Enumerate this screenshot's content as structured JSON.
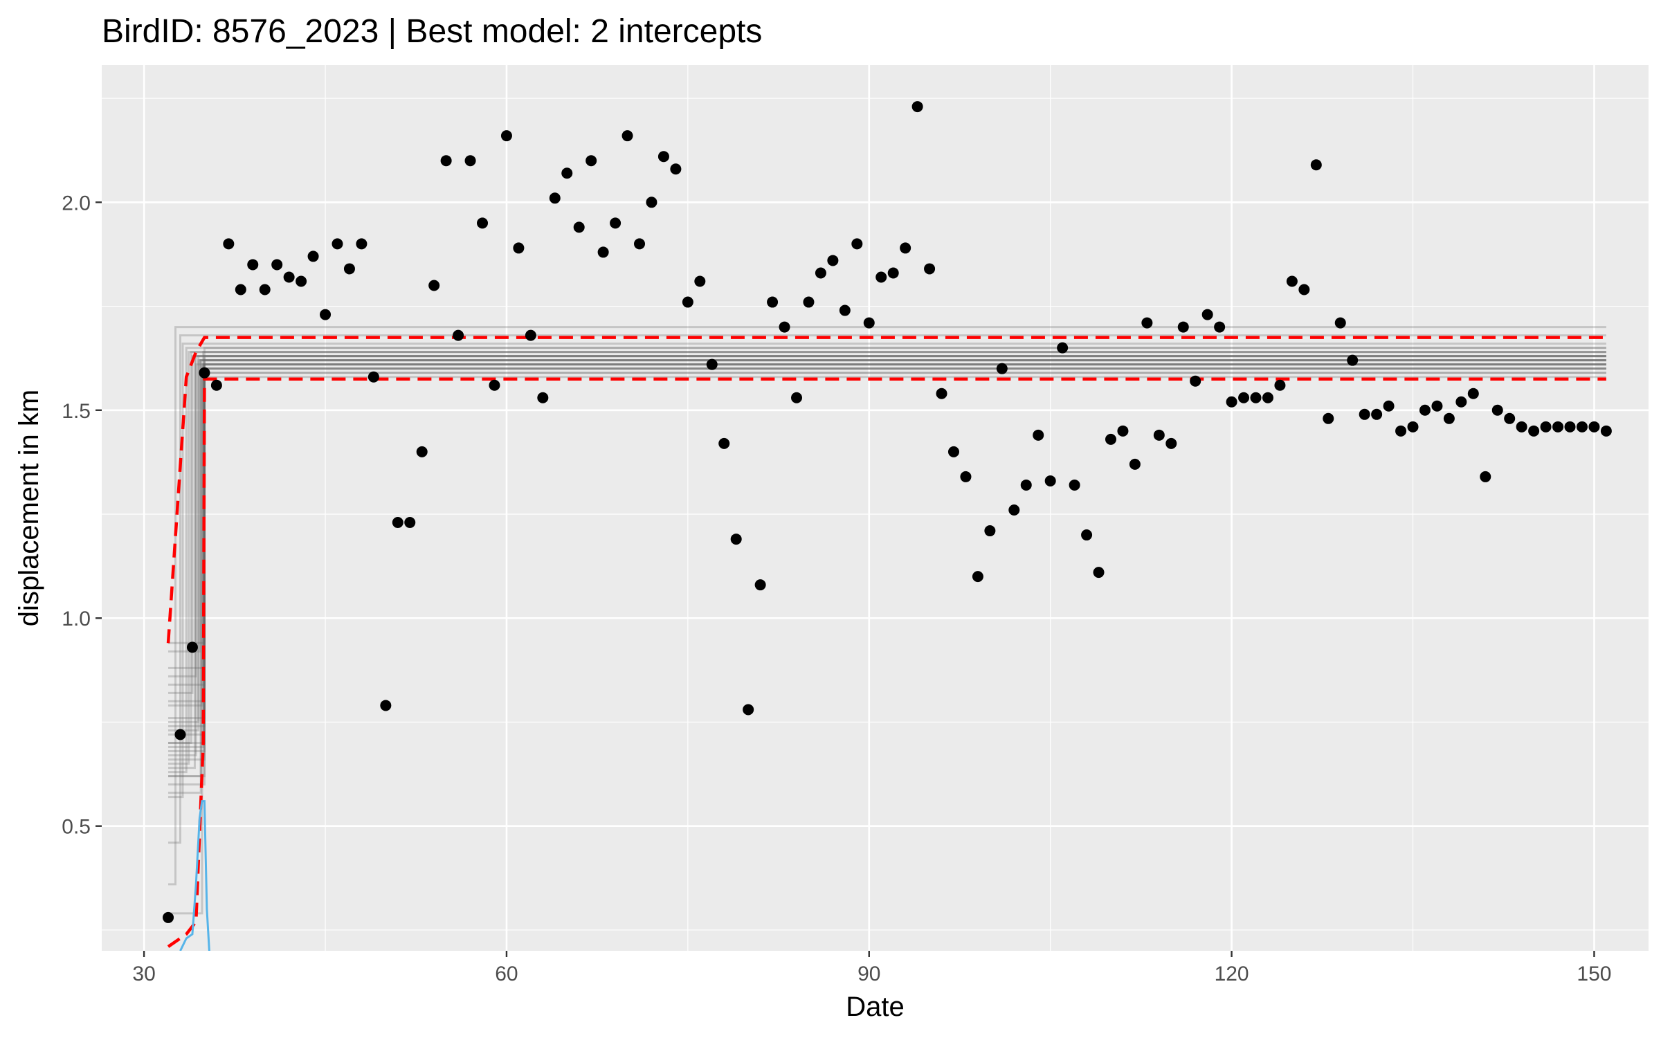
{
  "chart_data": {
    "type": "scatter",
    "title": "BirdID: 8576_2023 | Best model: 2 intercepts",
    "xlabel": "Date",
    "ylabel": "displacement in km",
    "xlim": [
      26.5,
      154.5
    ],
    "ylim": [
      0.2,
      2.33
    ],
    "x_ticks": [
      30,
      60,
      90,
      120,
      150
    ],
    "x_tick_labels": [
      "30",
      "60",
      "90",
      "120",
      "150"
    ],
    "y_ticks": [
      0.5,
      1.0,
      1.5,
      2.0
    ],
    "y_tick_labels": [
      "0.5",
      "1.0",
      "1.5",
      "2.0"
    ],
    "grid": true,
    "legend": "none",
    "colors": {
      "panel": "#ebebeb",
      "grid": "#ffffff",
      "points": "#000000",
      "posterior_lines": "#666666",
      "credible_interval": "#ff0000",
      "changepoint_density": "#56b4e9"
    },
    "points": {
      "x": [
        32,
        33,
        34,
        35,
        36,
        37,
        38,
        39,
        40,
        41,
        42,
        43,
        44,
        45,
        46,
        47,
        48,
        49,
        50,
        51,
        52,
        53,
        54,
        55,
        56,
        57,
        58,
        59,
        60,
        61,
        62,
        63,
        64,
        65,
        66,
        67,
        68,
        69,
        70,
        71,
        72,
        73,
        74,
        75,
        76,
        77,
        78,
        79,
        80,
        81,
        82,
        83,
        84,
        85,
        86,
        87,
        88,
        89,
        90,
        91,
        92,
        93,
        94,
        95,
        96,
        97,
        98,
        99,
        100,
        101,
        102,
        103,
        104,
        105,
        106,
        107,
        108,
        109,
        110,
        111,
        112,
        113,
        114,
        115,
        116,
        117,
        118,
        119,
        120,
        121,
        122,
        123,
        124,
        125,
        126,
        127,
        128,
        129,
        130,
        131,
        132,
        133,
        134,
        135,
        136,
        137,
        138,
        139,
        140,
        141,
        142,
        143,
        144,
        145,
        146,
        147,
        148,
        149,
        150,
        151
      ],
      "y": [
        0.28,
        0.72,
        0.93,
        1.59,
        1.56,
        1.9,
        1.79,
        1.85,
        1.79,
        1.85,
        1.82,
        1.81,
        1.87,
        1.73,
        1.9,
        1.84,
        1.9,
        1.58,
        0.79,
        1.23,
        1.23,
        1.4,
        1.8,
        2.1,
        1.68,
        2.1,
        1.95,
        1.56,
        2.16,
        1.89,
        1.68,
        1.53,
        2.01,
        2.07,
        1.94,
        2.1,
        1.88,
        1.95,
        2.16,
        1.9,
        2.0,
        2.11,
        2.08,
        1.76,
        1.81,
        1.61,
        1.42,
        1.19,
        0.78,
        1.08,
        1.76,
        1.7,
        1.53,
        1.76,
        1.83,
        1.86,
        1.74,
        1.9,
        1.71,
        1.82,
        1.83,
        1.89,
        2.23,
        1.84,
        1.54,
        1.4,
        1.34,
        1.1,
        1.21,
        1.6,
        1.26,
        1.32,
        1.44,
        1.33,
        1.65,
        1.32,
        1.2,
        1.11,
        1.43,
        1.45,
        1.37,
        1.71,
        1.44,
        1.42,
        1.7,
        1.57,
        1.73,
        1.7,
        1.52,
        1.53,
        1.53,
        1.53,
        1.56,
        1.81,
        1.79,
        2.09,
        1.48,
        1.71,
        1.62,
        1.49,
        1.49,
        1.51,
        1.45,
        1.46,
        1.5,
        1.51,
        1.48,
        1.52,
        1.54,
        1.34,
        1.5,
        1.48,
        1.46,
        1.45,
        1.46,
        1.46,
        1.46,
        1.46,
        1.46,
        1.45
      ]
    },
    "posterior_fits": {
      "x_start": 32,
      "x_end": 151,
      "changepoints": [
        32.6,
        33.0,
        33.2,
        33.5,
        33.7,
        33.9,
        34.0,
        34.2,
        34.3,
        34.5,
        34.6,
        34.7,
        34.8,
        34.9,
        34.95,
        35.0,
        35.0,
        35.0,
        35.0,
        35.0,
        35.0,
        35.0,
        35.0,
        35.0,
        35.0,
        34.9,
        34.8,
        34.7,
        34.5,
        34.3
      ],
      "first_intercepts": [
        0.36,
        0.46,
        0.57,
        0.63,
        0.65,
        0.7,
        0.82,
        0.64,
        0.86,
        0.73,
        0.92,
        0.62,
        0.79,
        0.69,
        0.72,
        0.66,
        0.94,
        0.6,
        0.84,
        0.76,
        0.68,
        0.62,
        0.7,
        0.8,
        0.74,
        0.88,
        0.29,
        0.58,
        0.75,
        0.67
      ],
      "second_intercepts": [
        1.7,
        1.68,
        1.66,
        1.65,
        1.64,
        1.64,
        1.63,
        1.63,
        1.63,
        1.62,
        1.62,
        1.62,
        1.61,
        1.61,
        1.61,
        1.6,
        1.6,
        1.6,
        1.59,
        1.59,
        1.58,
        1.65,
        1.63,
        1.62,
        1.61,
        1.64,
        1.6,
        1.62,
        1.63,
        1.61
      ]
    },
    "credible_interval": {
      "upper": {
        "x": [
          32,
          33.5,
          34.3,
          35,
          151
        ],
        "y": [
          0.94,
          1.58,
          1.64,
          1.675,
          1.675
        ]
      },
      "lower": {
        "x": [
          32,
          33.5,
          34.3,
          34.9,
          35,
          151
        ],
        "y": [
          0.21,
          0.24,
          0.27,
          0.7,
          1.575,
          1.575
        ]
      }
    },
    "changepoint_density": {
      "x": [
        33.0,
        33.5,
        34.0,
        34.3,
        34.6,
        34.8,
        35.0,
        35.2,
        35.4,
        35.6
      ],
      "y": [
        0.2,
        0.23,
        0.24,
        0.36,
        0.52,
        0.56,
        0.56,
        0.3,
        0.2,
        0.05
      ]
    }
  }
}
